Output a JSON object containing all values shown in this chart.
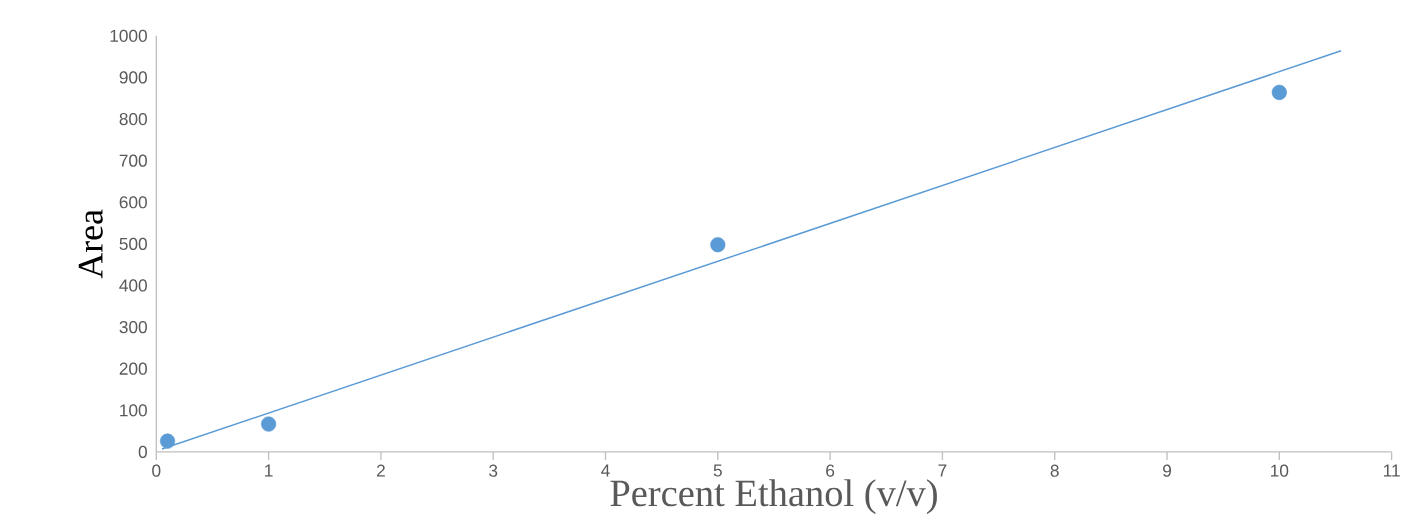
{
  "chart_data": {
    "type": "scatter",
    "xlabel": "Percent Ethanol (v/v)",
    "ylabel": "Area",
    "series": [
      {
        "color": "#5b9bd5",
        "marker": "circle",
        "x": [
          0.1,
          1,
          5,
          10
        ],
        "values": [
          26,
          67,
          498,
          864
        ]
      },
      {
        "type": "line",
        "color": "#5b9bd5",
        "marker": "none",
        "line_style": "solid",
        "x": [
          0.05,
          10.55
        ],
        "values": [
          7,
          964
        ]
      }
    ],
    "xlim": [
      0,
      11
    ],
    "ylim": [
      0,
      1000
    ],
    "xticks": [
      0,
      1,
      2,
      3,
      4,
      5,
      6,
      7,
      8,
      9,
      10,
      11
    ],
    "yticks": [
      0,
      100,
      200,
      300,
      400,
      500,
      600,
      700,
      800,
      900,
      1000
    ],
    "grid": false
  }
}
